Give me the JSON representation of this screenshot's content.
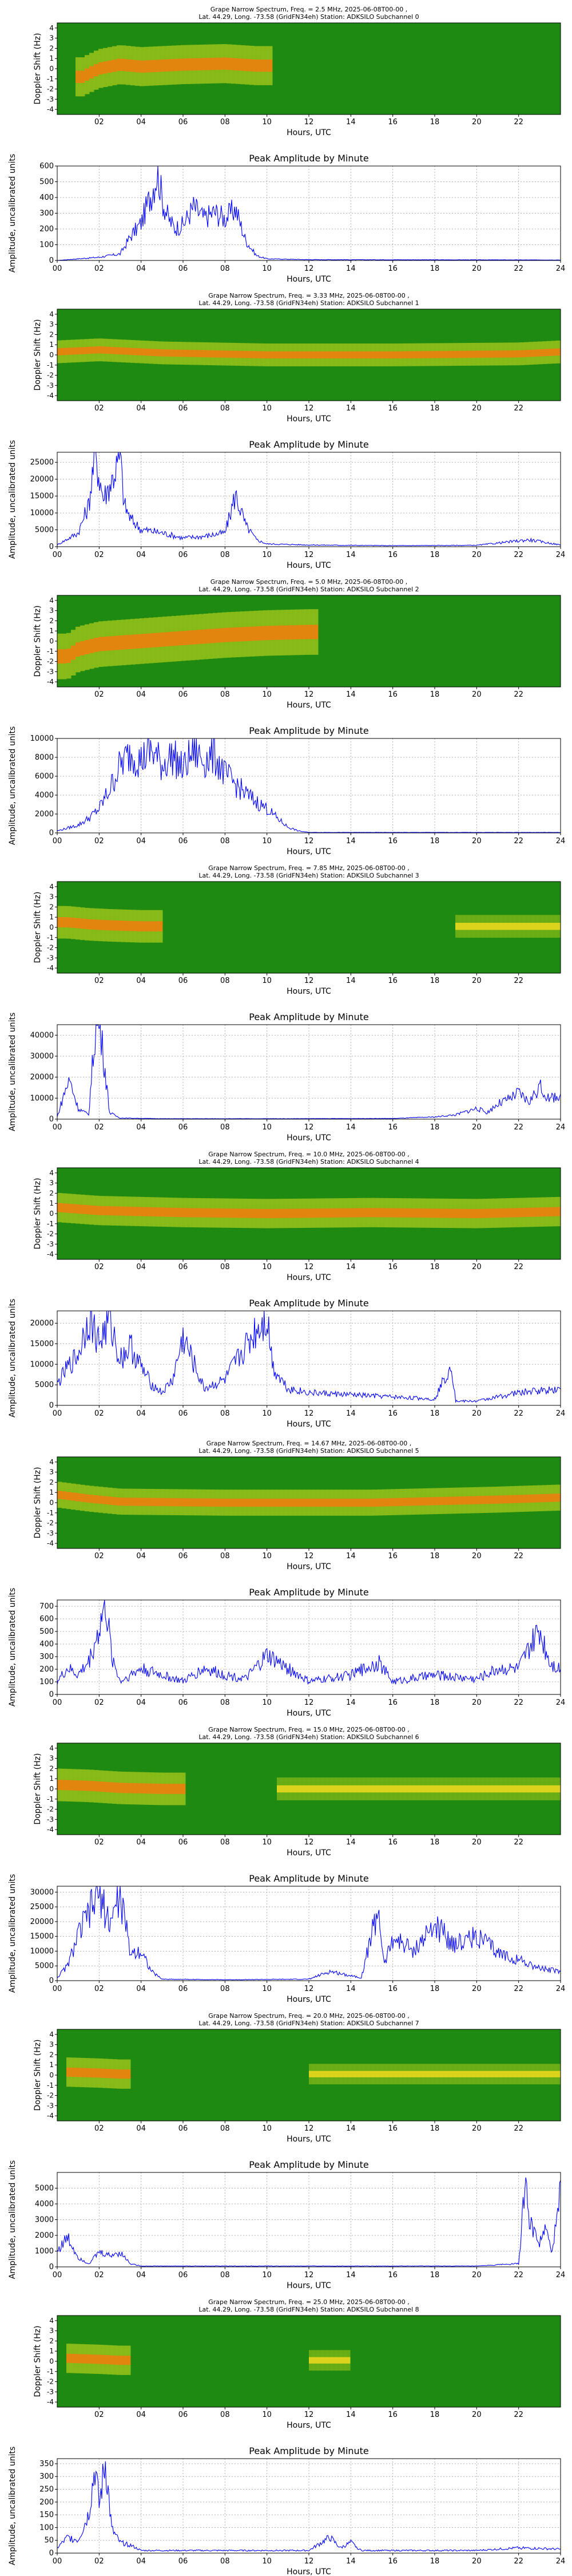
{
  "style": {
    "line_color": "#0000ff",
    "spec_low": "#1f8a12",
    "spec_mid": "#e8e820",
    "spec_high": "#ee3a00",
    "grid_color": "#b0b0b0"
  },
  "common": {
    "spec_title_line2": "Lat.  44.29, Long. -73.58 (GridFN34eh) Station: ADKSILO Subchannel {ch}",
    "spec_ylabel": "Doppler Shift (Hz)",
    "spec_xlabel": "Hours, UTC",
    "spec_yticks": [
      "4",
      "3",
      "2",
      "1",
      "0",
      "-1",
      "-2",
      "-3",
      "-4"
    ],
    "spec_xticks": [
      "02",
      "04",
      "06",
      "08",
      "10",
      "12",
      "14",
      "16",
      "18",
      "20",
      "22"
    ],
    "amp_title": "Peak Amplitude by Minute",
    "amp_ylabel": "Amplitude, uncalibrated units",
    "amp_xlabel": "Hours, UTC",
    "amp_xticks": [
      "00",
      "02",
      "04",
      "06",
      "08",
      "10",
      "12",
      "14",
      "16",
      "18",
      "20",
      "22",
      "24"
    ]
  },
  "chart_data": [
    {
      "type": "heatmap",
      "channel": 0,
      "title": "Grape Narrow Spectrum, Freq. = 2.5 MHz, 2025-06-08T00-00 ,",
      "active": [
        0.8,
        10.3
      ],
      "trace": [
        [
          1.2,
          -0.8
        ],
        [
          2,
          0.0
        ],
        [
          3,
          0.4
        ],
        [
          4,
          0.2
        ],
        [
          6,
          0.4
        ],
        [
          8,
          0.5
        ],
        [
          9.5,
          0.3
        ]
      ],
      "spread": 0.6
    },
    {
      "type": "line",
      "channel": 0,
      "title": "Peak Amplitude by Minute",
      "xlabel": "Hours, UTC",
      "ylabel": "Amplitude, uncalibrated units",
      "xlim": [
        0,
        24
      ],
      "ylim": [
        0,
        600
      ],
      "yticks": [
        "0",
        "100",
        "200",
        "300",
        "400",
        "500",
        "600"
      ],
      "x": [
        0,
        1,
        2,
        3,
        3.5,
        4,
        4.5,
        4.8,
        5,
        5.3,
        5.6,
        6,
        6.5,
        7,
        7.5,
        8,
        8.5,
        9,
        9.5,
        10,
        12,
        24
      ],
      "y": [
        0,
        10,
        20,
        40,
        150,
        230,
        420,
        560,
        380,
        260,
        200,
        220,
        330,
        260,
        300,
        260,
        320,
        120,
        30,
        10,
        5,
        3
      ]
    },
    {
      "type": "heatmap",
      "channel": 1,
      "title": "Grape Narrow Spectrum, Freq. = 3.33 MHz, 2025-06-08T00-00 ,",
      "active": [
        0,
        24
      ],
      "trace": [
        [
          0,
          0.3
        ],
        [
          2,
          0.5
        ],
        [
          5,
          0.2
        ],
        [
          10,
          0.0
        ],
        [
          16,
          0.0
        ],
        [
          22,
          0.1
        ],
        [
          24,
          0.3
        ]
      ],
      "spread": 0.35
    },
    {
      "type": "line",
      "channel": 1,
      "title": "Peak Amplitude by Minute",
      "xlabel": "Hours, UTC",
      "ylabel": "Amplitude, uncalibrated units",
      "xlim": [
        0,
        24
      ],
      "ylim": [
        0,
        28000
      ],
      "yticks": [
        "0",
        "5000",
        "10000",
        "15000",
        "20000",
        "25000"
      ],
      "x": [
        0,
        1,
        1.5,
        1.8,
        2.2,
        2.6,
        3,
        3.2,
        3.5,
        4,
        5,
        6,
        7,
        8,
        8.5,
        9,
        9.5,
        10,
        12,
        16,
        20,
        22.5,
        24
      ],
      "y": [
        500,
        4000,
        12000,
        27000,
        14000,
        19000,
        26000,
        12000,
        8000,
        5000,
        4000,
        2500,
        3000,
        4000,
        15000,
        6000,
        2000,
        800,
        500,
        300,
        400,
        2000,
        500
      ]
    },
    {
      "type": "heatmap",
      "channel": 2,
      "title": "Grape Narrow Spectrum, Freq. = 5.0 MHz, 2025-06-08T00-00 ,",
      "active": [
        0,
        12.5
      ],
      "trace": [
        [
          0.5,
          -1.5
        ],
        [
          1,
          -0.8
        ],
        [
          2,
          -0.3
        ],
        [
          4,
          0.0
        ],
        [
          6,
          0.3
        ],
        [
          8,
          0.6
        ],
        [
          10,
          0.8
        ],
        [
          12,
          0.9
        ]
      ],
      "spread": 0.7
    },
    {
      "type": "line",
      "channel": 2,
      "title": "Peak Amplitude by Minute",
      "xlabel": "Hours, UTC",
      "ylabel": "Amplitude, uncalibrated units",
      "xlim": [
        0,
        24
      ],
      "ylim": [
        0,
        10000
      ],
      "yticks": [
        "0",
        "2000",
        "4000",
        "6000",
        "8000",
        "10000"
      ],
      "x": [
        0,
        1,
        1.5,
        2,
        2.5,
        3,
        3.5,
        4,
        4.5,
        5,
        5.5,
        6,
        6.5,
        7,
        7.5,
        8,
        8.5,
        9,
        9.5,
        10,
        10.5,
        11,
        11.5,
        12,
        24
      ],
      "y": [
        200,
        800,
        1500,
        2500,
        4500,
        7000,
        8200,
        7500,
        8500,
        7000,
        8000,
        6500,
        8500,
        7500,
        8000,
        6000,
        5000,
        4000,
        3200,
        2500,
        1500,
        600,
        200,
        50,
        50
      ]
    },
    {
      "type": "heatmap",
      "channel": 3,
      "title": "Grape Narrow Spectrum, Freq. = 7.85 MHz, 2025-06-08T00-00 ,",
      "active": [
        0,
        5
      ],
      "trace": [
        [
          0.5,
          0.5
        ],
        [
          1.5,
          0.3
        ],
        [
          2.5,
          0.2
        ],
        [
          4,
          0.1
        ]
      ],
      "spread": 0.5,
      "second": [
        19,
        24
      ]
    },
    {
      "type": "line",
      "channel": 3,
      "title": "Peak Amplitude by Minute",
      "xlabel": "Hours, UTC",
      "ylabel": "Amplitude, uncalibrated units",
      "xlim": [
        0,
        24
      ],
      "ylim": [
        0,
        45000
      ],
      "yticks": [
        "0",
        "10000",
        "20000",
        "30000",
        "40000"
      ],
      "x": [
        0,
        0.4,
        0.6,
        1,
        1.5,
        1.8,
        2,
        2.2,
        2.5,
        3,
        5,
        10,
        16,
        18,
        19,
        20,
        20.5,
        21,
        21.5,
        22,
        22.5,
        23,
        23.5,
        24
      ],
      "y": [
        1000,
        14000,
        18000,
        5000,
        2000,
        40000,
        44000,
        30000,
        3000,
        500,
        200,
        200,
        300,
        1000,
        2000,
        5000,
        3000,
        7000,
        9000,
        12000,
        8000,
        15000,
        9000,
        12000
      ]
    },
    {
      "type": "heatmap",
      "channel": 4,
      "title": "Grape Narrow Spectrum, Freq. = 10.0 MHz, 2025-06-08T00-00 ,",
      "active": [
        0,
        24
      ],
      "trace": [
        [
          0,
          0.6
        ],
        [
          2,
          0.3
        ],
        [
          6,
          0.1
        ],
        [
          10,
          0.0
        ],
        [
          15,
          0.1
        ],
        [
          20,
          0.0
        ],
        [
          24,
          0.2
        ]
      ],
      "spread": 0.45
    },
    {
      "type": "line",
      "channel": 4,
      "title": "Peak Amplitude by Minute",
      "xlabel": "Hours, UTC",
      "ylabel": "Amplitude, uncalibrated units",
      "xlim": [
        0,
        24
      ],
      "ylim": [
        0,
        23000
      ],
      "yticks": [
        "0",
        "5000",
        "10000",
        "15000",
        "20000"
      ],
      "x": [
        0,
        0.5,
        1,
        1.5,
        2,
        2.5,
        3,
        3.5,
        4,
        4.5,
        5,
        5.5,
        6,
        7,
        8,
        9,
        9.5,
        10,
        10.3,
        11,
        12,
        14,
        16,
        18,
        18.8,
        19,
        20,
        22,
        24
      ],
      "y": [
        5000,
        9000,
        12000,
        21000,
        15000,
        20000,
        11000,
        14000,
        9000,
        5000,
        3000,
        6000,
        16000,
        4000,
        6000,
        14000,
        18000,
        21000,
        9000,
        4000,
        3000,
        2500,
        2000,
        1500,
        10000,
        1000,
        1000,
        3000,
        4000
      ]
    },
    {
      "type": "heatmap",
      "channel": 5,
      "title": "Grape Narrow Spectrum, Freq. = 14.67 MHz, 2025-06-08T00-00 ,",
      "active": [
        0,
        24
      ],
      "trace": [
        [
          0,
          0.8
        ],
        [
          1.5,
          0.4
        ],
        [
          3,
          0.1
        ],
        [
          8,
          0.0
        ],
        [
          15,
          0.0
        ],
        [
          21,
          0.3
        ],
        [
          24,
          0.5
        ]
      ],
      "spread": 0.4
    },
    {
      "type": "line",
      "channel": 5,
      "title": "Peak Amplitude by Minute",
      "xlabel": "Hours, UTC",
      "ylabel": "Amplitude, uncalibrated units",
      "xlim": [
        0,
        24
      ],
      "ylim": [
        0,
        750
      ],
      "yticks": [
        "0",
        "100",
        "200",
        "300",
        "400",
        "500",
        "600",
        "700"
      ],
      "x": [
        0,
        0.5,
        1,
        1.5,
        2,
        2.3,
        2.6,
        3,
        4,
        5,
        6,
        7,
        8,
        9,
        10,
        12,
        14,
        15.3,
        16,
        18,
        20,
        21,
        22,
        23,
        23.5,
        24
      ],
      "y": [
        100,
        200,
        150,
        250,
        500,
        700,
        300,
        100,
        200,
        150,
        100,
        200,
        150,
        120,
        300,
        100,
        150,
        250,
        100,
        150,
        120,
        200,
        200,
        500,
        250,
        200
      ]
    },
    {
      "type": "heatmap",
      "channel": 6,
      "title": "Grape Narrow Spectrum, Freq. = 15.0 MHz, 2025-06-08T00-00 ,",
      "active": [
        0,
        6
      ],
      "trace": [
        [
          0,
          0.4
        ],
        [
          1.5,
          0.3
        ],
        [
          3,
          0.1
        ],
        [
          5,
          0.0
        ]
      ],
      "spread": 0.5,
      "second": [
        10.5,
        24
      ]
    },
    {
      "type": "line",
      "channel": 6,
      "title": "Peak Amplitude by Minute",
      "xlabel": "Hours, UTC",
      "ylabel": "Amplitude, uncalibrated units",
      "xlim": [
        0,
        24
      ],
      "ylim": [
        0,
        32000
      ],
      "yticks": [
        "0",
        "5000",
        "10000",
        "15000",
        "20000",
        "25000",
        "30000"
      ],
      "x": [
        0,
        0.5,
        1,
        1.5,
        2,
        2.5,
        3,
        3.5,
        4,
        4.5,
        5,
        8,
        12,
        13,
        14.5,
        15.3,
        15.6,
        16,
        17,
        18,
        19,
        20,
        21,
        22,
        23,
        24
      ],
      "y": [
        1000,
        5000,
        15000,
        22000,
        29000,
        19000,
        28000,
        9000,
        10000,
        3000,
        500,
        300,
        500,
        3000,
        1000,
        24000,
        5000,
        14000,
        10000,
        18000,
        12000,
        15000,
        9000,
        7000,
        4000,
        3000
      ]
    },
    {
      "type": "heatmap",
      "channel": 7,
      "title": "Grape Narrow Spectrum, Freq. = 20.0 MHz, 2025-06-08T00-00 ,",
      "active": [
        0.5,
        3.5
      ],
      "trace": [
        [
          0.5,
          0.3
        ],
        [
          2,
          0.2
        ],
        [
          3,
          0.1
        ]
      ],
      "spread": 0.45,
      "second": [
        12,
        24
      ]
    },
    {
      "type": "line",
      "channel": 7,
      "title": "Peak Amplitude by Minute",
      "xlabel": "Hours, UTC",
      "ylabel": "Amplitude, uncalibrated units",
      "xlim": [
        0,
        24
      ],
      "ylim": [
        0,
        6000
      ],
      "yticks": [
        "0",
        "1000",
        "2000",
        "3000",
        "4000",
        "5000"
      ],
      "x": [
        0,
        0.5,
        1,
        1.5,
        2,
        2.5,
        3,
        3.5,
        4,
        10,
        16,
        20,
        22,
        22.3,
        22.6,
        23,
        23.3,
        23.6,
        24
      ],
      "y": [
        1000,
        1800,
        600,
        200,
        900,
        700,
        900,
        200,
        50,
        50,
        50,
        50,
        200,
        4800,
        2500,
        1500,
        2200,
        800,
        5500
      ]
    },
    {
      "type": "heatmap",
      "channel": 8,
      "title": "Grape Narrow Spectrum, Freq. = 25.0 MHz, 2025-06-08T00-00 ,",
      "active": [
        0.5,
        3.5
      ],
      "trace": [
        [
          0.5,
          0.3
        ],
        [
          2,
          0.2
        ],
        [
          3,
          0.1
        ]
      ],
      "spread": 0.45,
      "second": [
        12,
        14
      ]
    },
    {
      "type": "line",
      "channel": 8,
      "title": "Peak Amplitude by Minute",
      "xlabel": "Hours, UTC",
      "ylabel": "Amplitude, uncalibrated units",
      "xlim": [
        0,
        24
      ],
      "ylim": [
        0,
        370
      ],
      "yticks": [
        "0",
        "50",
        "100",
        "150",
        "200",
        "250",
        "300",
        "350"
      ],
      "x": [
        0,
        0.5,
        1,
        1.5,
        1.8,
        2,
        2.3,
        2.6,
        3,
        3.5,
        4,
        8,
        12,
        13,
        13.5,
        14,
        14.5,
        16,
        20,
        22,
        24
      ],
      "y": [
        20,
        60,
        50,
        150,
        330,
        180,
        350,
        90,
        40,
        30,
        10,
        10,
        10,
        60,
        20,
        40,
        10,
        10,
        10,
        20,
        15
      ]
    }
  ]
}
